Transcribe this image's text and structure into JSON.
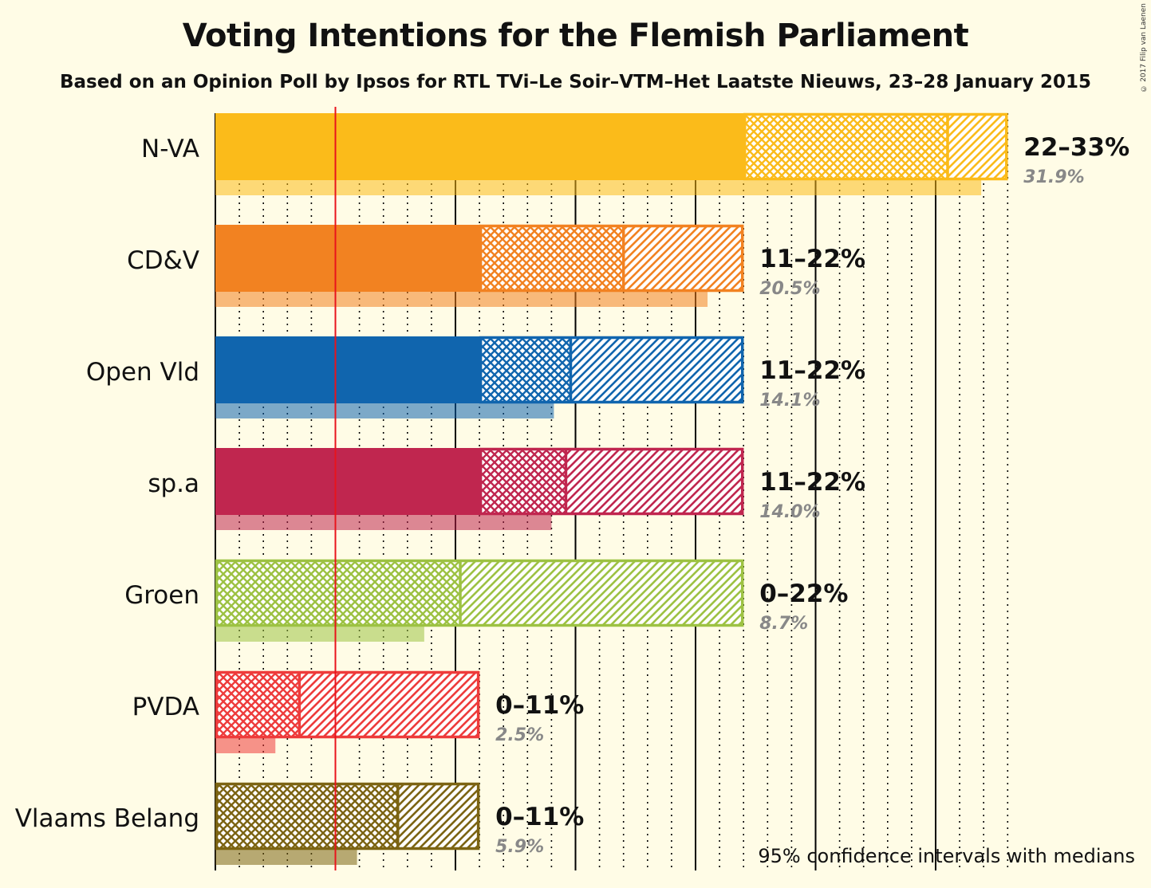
{
  "title": "Voting Intentions for the Flemish Parliament",
  "subtitle": "Based on an Opinion Poll by Ipsos for RTL TVi–Le Soir–VTM–Het Laatste Nieuws, 23–28 January 2015",
  "copyright": "© 2017 Filip van Laenen",
  "footnote": "95% confidence intervals with medians",
  "chart_data": {
    "type": "bar",
    "orientation": "horizontal",
    "x_unit": "%",
    "xlim": [
      0,
      33
    ],
    "threshold": 5,
    "series": [
      {
        "name": "N-VA",
        "color": "#FBBB1A",
        "ci_low": 22,
        "median": 30.5,
        "ci_high": 33,
        "range_label": "22–33%",
        "last_result": 31.9,
        "last_label": "31.9%"
      },
      {
        "name": "CD&V",
        "color": "#F28221",
        "ci_low": 11,
        "median": 17,
        "ci_high": 22,
        "range_label": "11–22%",
        "last_result": 20.5,
        "last_label": "20.5%"
      },
      {
        "name": "Open Vld",
        "color": "#1065AE",
        "ci_low": 11,
        "median": 14.8,
        "ci_high": 22,
        "range_label": "11–22%",
        "last_result": 14.1,
        "last_label": "14.1%"
      },
      {
        "name": "sp.a",
        "color": "#C0264F",
        "ci_low": 11,
        "median": 14.6,
        "ci_high": 22,
        "range_label": "11–22%",
        "last_result": 14.0,
        "last_label": "14.0%"
      },
      {
        "name": "Groen",
        "color": "#9DC243",
        "ci_low": 0,
        "median": 10.2,
        "ci_high": 22,
        "range_label": "0–22%",
        "last_result": 8.7,
        "last_label": "8.7%"
      },
      {
        "name": "PVDA",
        "color": "#EE3B3B",
        "ci_low": 0,
        "median": 3.5,
        "ci_high": 11,
        "range_label": "0–11%",
        "last_result": 2.5,
        "last_label": "2.5%"
      },
      {
        "name": "Vlaams Belang",
        "color": "#7C6413",
        "ci_low": 0,
        "median": 7.6,
        "ci_high": 11,
        "range_label": "0–11%",
        "last_result": 5.9,
        "last_label": "5.9%"
      }
    ]
  }
}
